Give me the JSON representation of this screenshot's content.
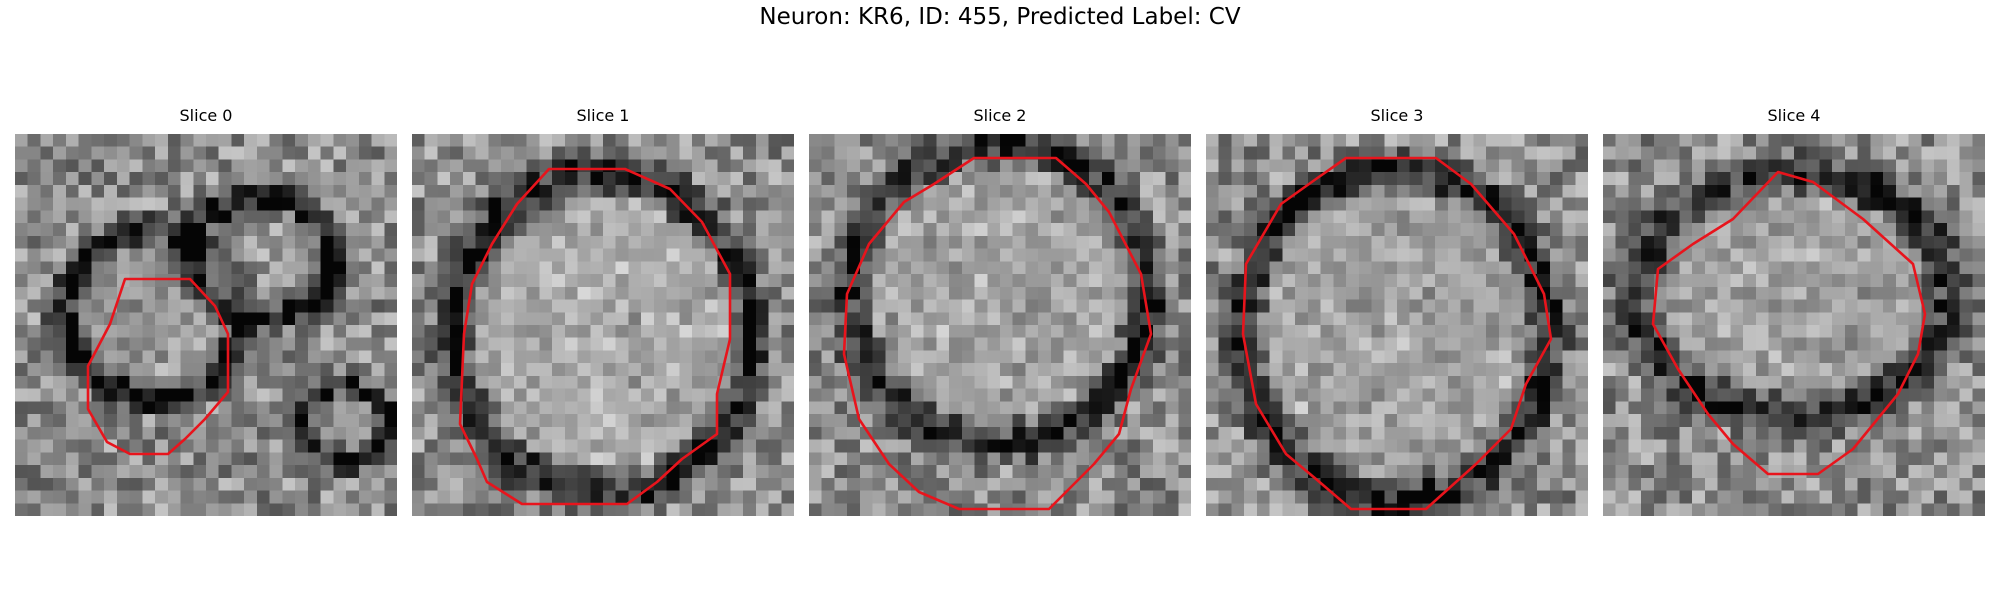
{
  "figure": {
    "title": "Neuron: KR6, ID: 455, Predicted Label: CV"
  },
  "panels": [
    {
      "title": "Slice 0"
    },
    {
      "title": "Slice 1"
    },
    {
      "title": "Slice 2"
    },
    {
      "title": "Slice 3"
    },
    {
      "title": "Slice 4"
    }
  ],
  "colors": {
    "contour": "#e8141c",
    "background": "#ffffff"
  }
}
